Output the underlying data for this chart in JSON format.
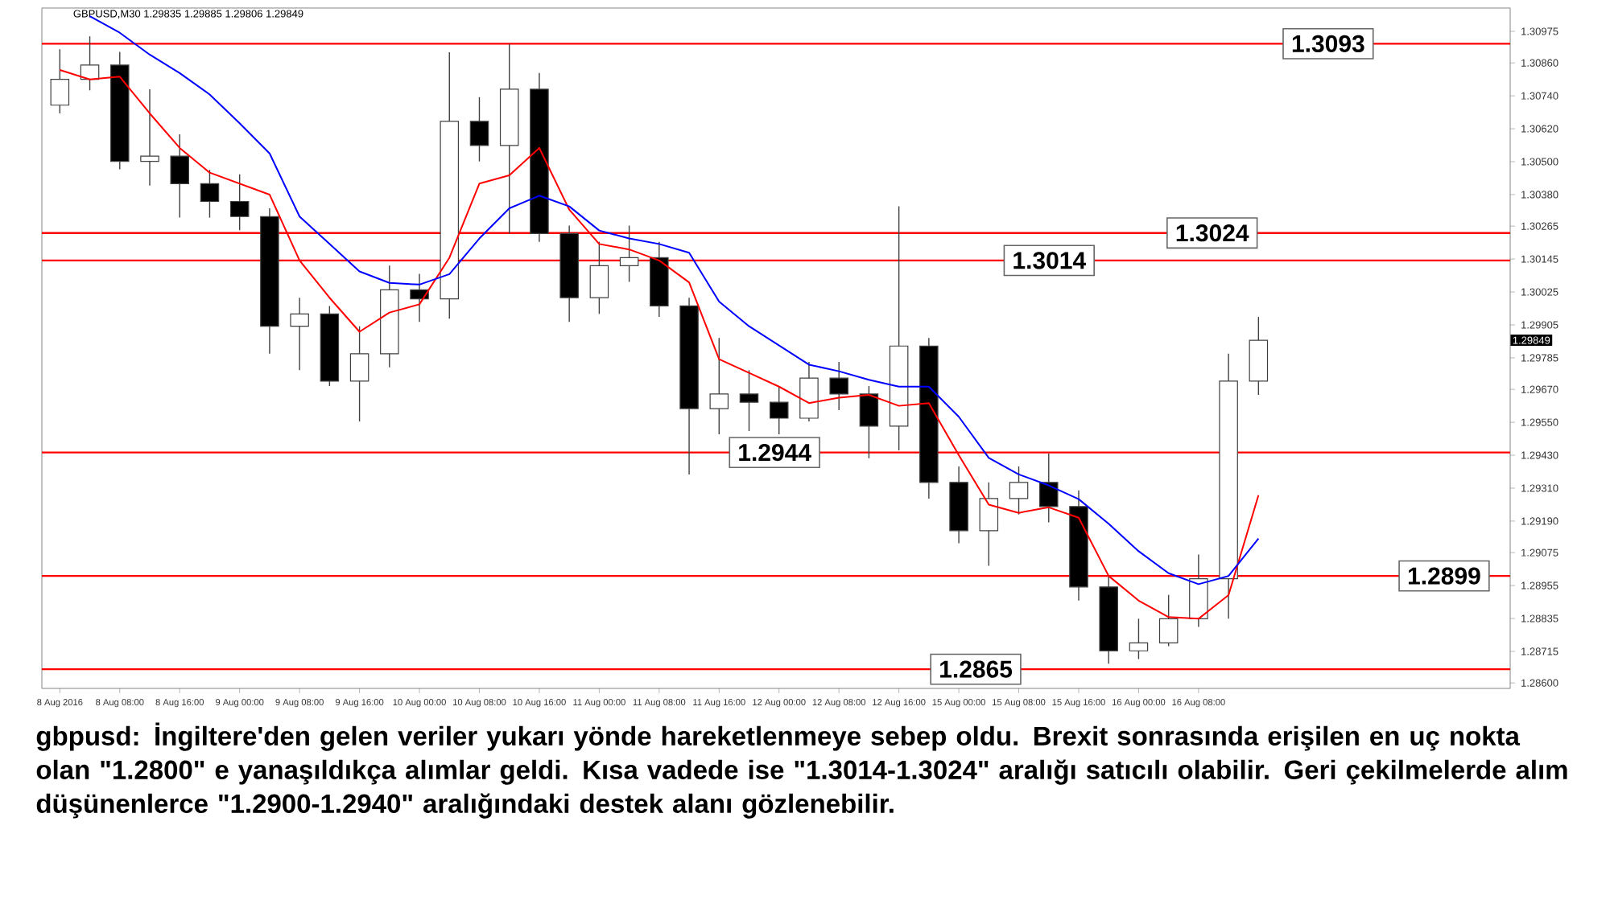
{
  "chart_data": {
    "type": "candlestick",
    "title": "GBPUSD,M30  1.29835 1.29885 1.29806 1.29849",
    "categories": [
      "8 Aug 2016",
      null,
      "8 Aug 08:00",
      null,
      "8 Aug 16:00",
      null,
      "9 Aug 00:00",
      null,
      "9 Aug 08:00",
      null,
      "9 Aug 16:00",
      null,
      "10 Aug 00:00",
      null,
      "10 Aug 08:00",
      null,
      "10 Aug 16:00",
      null,
      "11 Aug 00:00",
      null,
      "11 Aug 08:00",
      null,
      "11 Aug 16:00",
      null,
      "12 Aug 00:00",
      null,
      "12 Aug 08:00",
      null,
      "12 Aug 16:00",
      null,
      "15 Aug 00:00",
      null,
      "15 Aug 08:00",
      null,
      "15 Aug 16:00",
      null,
      "16 Aug 00:00",
      null,
      "16 Aug 08:00",
      null,
      null
    ],
    "ohlc": [
      [
        1.30706,
        1.3091,
        1.30676,
        1.308
      ],
      [
        1.308,
        1.30957,
        1.3076,
        1.30852
      ],
      [
        1.30852,
        1.309,
        1.30472,
        1.30501
      ],
      [
        1.30501,
        1.30764,
        1.30413,
        1.3052
      ],
      [
        1.3052,
        1.306,
        1.30296,
        1.3042
      ],
      [
        1.3042,
        1.3047,
        1.30296,
        1.30355
      ],
      [
        1.30355,
        1.30454,
        1.3025,
        1.303
      ],
      [
        1.303,
        1.3033,
        1.298,
        1.299
      ],
      [
        1.299,
        1.30004,
        1.2974,
        1.29945
      ],
      [
        1.29945,
        1.29974,
        1.29682,
        1.297
      ],
      [
        1.297,
        1.299,
        1.29553,
        1.298
      ],
      [
        1.298,
        1.30121,
        1.2975,
        1.30033
      ],
      [
        1.30033,
        1.30091,
        1.29916,
        1.3
      ],
      [
        1.3,
        1.30899,
        1.29928,
        1.30647
      ],
      [
        1.30647,
        1.30735,
        1.30501,
        1.30559
      ],
      [
        1.30559,
        1.30928,
        1.30238,
        1.30764
      ],
      [
        1.30764,
        1.30823,
        1.30208,
        1.30238
      ],
      [
        1.30238,
        1.30267,
        1.29916,
        1.30004
      ],
      [
        1.30004,
        1.30208,
        1.29945,
        1.30121
      ],
      [
        1.30121,
        1.30267,
        1.30062,
        1.3015
      ],
      [
        1.3015,
        1.30208,
        1.29934,
        1.29974
      ],
      [
        1.29974,
        1.30004,
        1.2936,
        1.296
      ],
      [
        1.296,
        1.29857,
        1.29506,
        1.29653
      ],
      [
        1.29653,
        1.2974,
        1.29518,
        1.29623
      ],
      [
        1.29623,
        1.29682,
        1.29506,
        1.29565
      ],
      [
        1.29565,
        1.2977,
        1.29553,
        1.29711
      ],
      [
        1.29711,
        1.2977,
        1.29594,
        1.29653
      ],
      [
        1.29653,
        1.29682,
        1.29419,
        1.29536
      ],
      [
        1.29536,
        1.30337,
        1.29448,
        1.29828
      ],
      [
        1.29828,
        1.29857,
        1.29272,
        1.29331
      ],
      [
        1.29331,
        1.29389,
        1.29109,
        1.29155
      ],
      [
        1.29155,
        1.29331,
        1.29027,
        1.29272
      ],
      [
        1.29272,
        1.29389,
        1.29214,
        1.29331
      ],
      [
        1.29331,
        1.29436,
        1.29185,
        1.29243
      ],
      [
        1.29243,
        1.29302,
        1.289,
        1.2895
      ],
      [
        1.2895,
        1.2899,
        1.2867,
        1.28717
      ],
      [
        1.28717,
        1.28834,
        1.28687,
        1.28746
      ],
      [
        1.28746,
        1.28921,
        1.28734,
        1.28834
      ],
      [
        1.28834,
        1.29068,
        1.28804,
        1.2898
      ],
      [
        1.2898,
        1.298,
        1.28834,
        1.297
      ],
      [
        1.297,
        1.29934,
        1.2965,
        1.29849
      ]
    ],
    "series": [
      {
        "type": "line",
        "color": "#ff0000",
        "values": [
          1.30834,
          1.308,
          1.3081,
          1.30676,
          1.3055,
          1.3046,
          1.3042,
          1.3038,
          1.3014,
          1.30004,
          1.2988,
          1.2995,
          1.2998,
          1.3015,
          1.3042,
          1.3045,
          1.3055,
          1.30325,
          1.302,
          1.3018,
          1.3014,
          1.3006,
          1.2978,
          1.2973,
          1.2968,
          1.2962,
          1.2964,
          1.2965,
          1.2961,
          1.2962,
          1.2943,
          1.2925,
          1.2922,
          1.2924,
          1.29202,
          1.2899,
          1.289,
          1.2884,
          1.28834,
          1.2892,
          1.29284
        ]
      },
      {
        "type": "line",
        "color": "#0000ff",
        "values": [
          null,
          1.3103,
          1.3097,
          1.3089,
          1.30823,
          1.30745,
          1.3064,
          1.3053,
          1.303,
          1.302,
          1.301,
          1.30058,
          1.30052,
          1.3009,
          1.3022,
          1.3033,
          1.30376,
          1.30337,
          1.30249,
          1.3022,
          1.302,
          1.30168,
          1.2999,
          1.299,
          1.2983,
          1.2976,
          1.29736,
          1.29705,
          1.2968,
          1.2968,
          1.2957,
          1.2942,
          1.2936,
          1.2932,
          1.2927,
          1.2918,
          1.2908,
          1.29,
          1.2896,
          1.2899,
          1.29126
        ]
      }
    ],
    "ylim": [
      1.2858,
      1.3106
    ],
    "yticks": [
      {
        "value": 1.30975,
        "label": "1.30975"
      },
      {
        "value": 1.3086,
        "label": "1.30860"
      },
      {
        "value": 1.3074,
        "label": "1.30740"
      },
      {
        "value": 1.3062,
        "label": "1.30620"
      },
      {
        "value": 1.305,
        "label": "1.30500"
      },
      {
        "value": 1.3038,
        "label": "1.30380"
      },
      {
        "value": 1.30265,
        "label": "1.30265"
      },
      {
        "value": 1.30145,
        "label": "1.30145"
      },
      {
        "value": 1.30025,
        "label": "1.30025"
      },
      {
        "value": 1.29905,
        "label": "1.29905"
      },
      {
        "value": 1.29785,
        "label": "1.29785"
      },
      {
        "value": 1.2967,
        "label": "1.29670"
      },
      {
        "value": 1.2955,
        "label": "1.29550"
      },
      {
        "value": 1.2943,
        "label": "1.29430"
      },
      {
        "value": 1.2931,
        "label": "1.29310"
      },
      {
        "value": 1.2919,
        "label": "1.29190"
      },
      {
        "value": 1.29075,
        "label": "1.29075"
      },
      {
        "value": 1.28955,
        "label": "1.28955"
      },
      {
        "value": 1.28835,
        "label": "1.28835"
      },
      {
        "value": 1.28715,
        "label": "1.28715"
      },
      {
        "value": 1.286,
        "label": "1.28600"
      }
    ],
    "ref_lines": [
      {
        "axis": "y",
        "value": 1.3093,
        "label": "1.3093",
        "color": "#ff0000"
      },
      {
        "axis": "y",
        "value": 1.3024,
        "label": "1.3024",
        "color": "#ff0000"
      },
      {
        "axis": "y",
        "value": 1.3014,
        "label": "1.3014",
        "color": "#ff0000"
      },
      {
        "axis": "y",
        "value": 1.2944,
        "label": "1.2944",
        "color": "#ff0000"
      },
      {
        "axis": "y",
        "value": 1.2899,
        "label": "1.2899",
        "color": "#ff0000"
      },
      {
        "axis": "y",
        "value": 1.2865,
        "label": "1.2865",
        "color": "#ff0000"
      }
    ],
    "annotations": [
      "1.29849",
      "gbpusd: İngiltere'den gelen veriler yukarı yönde hareketlenmeye sebep oldu. Brexit sonrasında erişilen en uç nokta olan \"1.2800\" e yanaşıldıkça alımlar geldi. Kısa vadede ise \"1.3014-1.3024\" aralığı satıcılı olabilir. Geri çekilmelerde alım düşünenlerce \"1.2900-1.2940\" aralığındaki destek alanı gözlenebilir."
    ]
  }
}
